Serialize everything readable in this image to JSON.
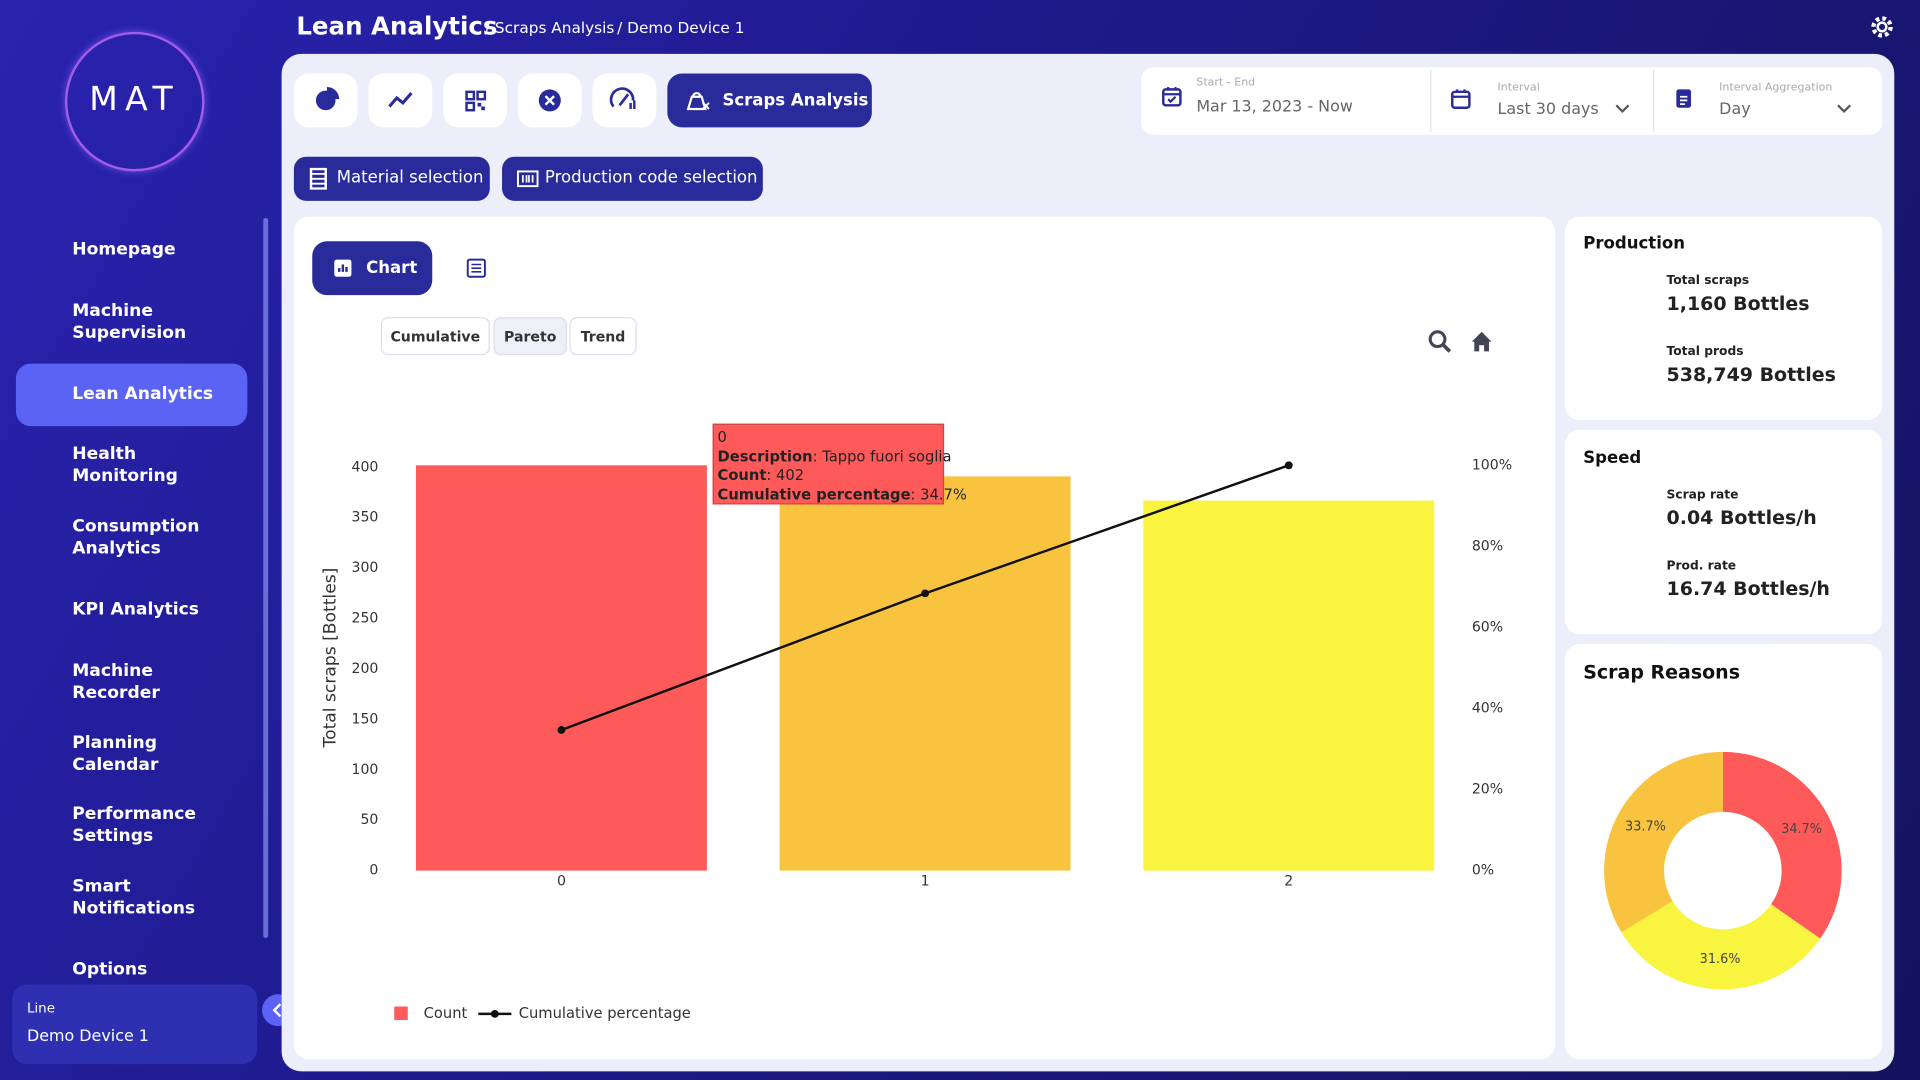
{
  "header": {
    "title": "Lean Analytics",
    "breadcrumbs": [
      "/ Scraps Analysis",
      "/ Demo Device 1"
    ]
  },
  "logo": "MAT",
  "nav": [
    "Homepage",
    "Machine Supervision",
    "Lean Analytics",
    "Health Monitoring",
    "Consumption Analytics",
    "KPI Analytics",
    "Machine Recorder",
    "Planning Calendar",
    "Performance Settings",
    "Smart Notifications",
    "Options"
  ],
  "active_nav": 2,
  "line_selector": {
    "label": "Line",
    "value": "Demo Device 1"
  },
  "toolbar": {
    "active_tab": "Scraps Analysis"
  },
  "filters": [
    {
      "label": "Start - End",
      "value": "Mar 13, 2023 - Now"
    },
    {
      "label": "Interval",
      "value": "Last 30 days"
    },
    {
      "label": "Interval Aggregation",
      "value": "Day"
    }
  ],
  "selection_buttons": [
    "Material selection",
    "Production code selection"
  ],
  "view_tab": "Chart",
  "chart_modes": [
    "Cumulative",
    "Pareto",
    "Trend"
  ],
  "production": {
    "title": "Production",
    "items": [
      {
        "label": "Total scraps",
        "value": "1,160 Bottles"
      },
      {
        "label": "Total prods",
        "value": "538,749 Bottles"
      }
    ]
  },
  "speed": {
    "title": "Speed",
    "items": [
      {
        "label": "Scrap rate",
        "value": "0.04 Bottles/h"
      },
      {
        "label": "Prod. rate",
        "value": "16.74 Bottles/h"
      }
    ]
  },
  "tooltip": {
    "title": "0",
    "rows": [
      {
        "label": "Description",
        "value": "Tappo fuori soglia"
      },
      {
        "label": "Count",
        "value": "402"
      },
      {
        "label": "Cumulative percentage",
        "value": "34.7%"
      }
    ]
  },
  "chart_data": [
    {
      "type": "pareto",
      "y_label": "Total scraps [Bottles]",
      "categories": [
        "0",
        "1",
        "2"
      ],
      "series": [
        {
          "name": "Count",
          "type": "bar",
          "color": "#ff5a5a",
          "colors": [
            "#ff5a5a",
            "#f8c440",
            "#f8f440"
          ],
          "values": [
            402,
            391,
            367
          ]
        },
        {
          "name": "Cumulative percentage",
          "type": "line",
          "axis": "y2",
          "color": "#111111",
          "values": [
            34.7,
            68.4,
            100
          ]
        }
      ],
      "ylim": [
        0,
        402
      ],
      "yticks": [
        0,
        50,
        100,
        150,
        200,
        250,
        300,
        350,
        400
      ],
      "y2lim": [
        0,
        100
      ],
      "y2ticks": [
        {
          "value": 0,
          "label": "0%"
        },
        {
          "value": 20,
          "label": "20%"
        },
        {
          "value": 40,
          "label": "40%"
        },
        {
          "value": 60,
          "label": "60%"
        },
        {
          "value": 80,
          "label": "80%"
        },
        {
          "value": 100,
          "label": "100%"
        }
      ],
      "grid": false,
      "legend": "bottom-left"
    },
    {
      "type": "donut",
      "title": "Scrap Reasons",
      "values": [
        34.7,
        31.6,
        33.7
      ],
      "value_labels": [
        "34.7%",
        "31.6%",
        "33.7%"
      ],
      "colors": [
        "#ff5a5a",
        "#f8f440",
        "#f8c440"
      ]
    }
  ]
}
